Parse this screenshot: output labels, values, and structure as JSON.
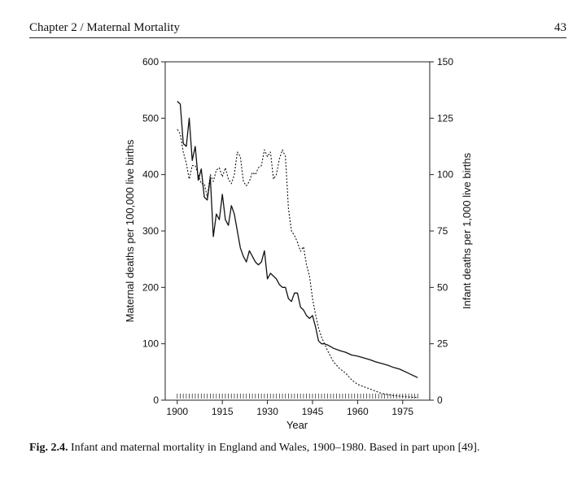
{
  "running_head": {
    "chapter": "Chapter 2 / Maternal Mortality",
    "page_number": "43"
  },
  "caption": {
    "label": "Fig. 2.4.",
    "text": "Infant and maternal mortality in England and Wales, 1900–1980. Based in part upon [49]."
  },
  "chart_data": {
    "type": "line",
    "title": "",
    "xlabel": "Year",
    "ylabel_left": "Maternal deaths per 100,000 live births",
    "ylabel_right": "Infant deaths per 1,000 live births",
    "xlim": [
      1896,
      1984
    ],
    "ylim_left": [
      0,
      600
    ],
    "ylim_right": [
      0,
      150
    ],
    "x_ticks": [
      1900,
      1915,
      1930,
      1945,
      1960,
      1975
    ],
    "y_ticks_left": [
      0,
      100,
      200,
      300,
      400,
      500,
      600
    ],
    "y_ticks_right": [
      0,
      25,
      50,
      75,
      100,
      125,
      150
    ],
    "grid": false,
    "series": [
      {
        "axis": "left",
        "style": "solid",
        "color": "#111111",
        "points": [
          [
            1900,
            530
          ],
          [
            1901,
            525
          ],
          [
            1902,
            455
          ],
          [
            1903,
            450
          ],
          [
            1904,
            500
          ],
          [
            1905,
            425
          ],
          [
            1906,
            450
          ],
          [
            1907,
            390
          ],
          [
            1908,
            410
          ],
          [
            1909,
            360
          ],
          [
            1910,
            355
          ],
          [
            1911,
            395
          ],
          [
            1912,
            290
          ],
          [
            1913,
            330
          ],
          [
            1914,
            320
          ],
          [
            1915,
            365
          ],
          [
            1916,
            320
          ],
          [
            1917,
            310
          ],
          [
            1918,
            345
          ],
          [
            1919,
            330
          ],
          [
            1920,
            300
          ],
          [
            1921,
            270
          ],
          [
            1922,
            255
          ],
          [
            1923,
            245
          ],
          [
            1924,
            265
          ],
          [
            1925,
            255
          ],
          [
            1926,
            245
          ],
          [
            1927,
            240
          ],
          [
            1928,
            245
          ],
          [
            1929,
            265
          ],
          [
            1930,
            215
          ],
          [
            1931,
            225
          ],
          [
            1932,
            220
          ],
          [
            1933,
            215
          ],
          [
            1934,
            205
          ],
          [
            1935,
            200
          ],
          [
            1936,
            200
          ],
          [
            1937,
            180
          ],
          [
            1938,
            175
          ],
          [
            1939,
            190
          ],
          [
            1940,
            190
          ],
          [
            1941,
            165
          ],
          [
            1942,
            160
          ],
          [
            1943,
            150
          ],
          [
            1944,
            145
          ],
          [
            1945,
            150
          ],
          [
            1946,
            130
          ],
          [
            1947,
            105
          ],
          [
            1948,
            100
          ],
          [
            1949,
            100
          ],
          [
            1950,
            98
          ],
          [
            1952,
            92
          ],
          [
            1954,
            88
          ],
          [
            1956,
            85
          ],
          [
            1958,
            80
          ],
          [
            1960,
            78
          ],
          [
            1962,
            75
          ],
          [
            1964,
            72
          ],
          [
            1966,
            68
          ],
          [
            1968,
            65
          ],
          [
            1970,
            62
          ],
          [
            1972,
            58
          ],
          [
            1974,
            55
          ],
          [
            1976,
            50
          ],
          [
            1978,
            45
          ],
          [
            1980,
            40
          ]
        ]
      },
      {
        "axis": "right",
        "style": "dotted",
        "color": "#111111",
        "points": [
          [
            1900,
            120
          ],
          [
            1901,
            118
          ],
          [
            1902,
            110
          ],
          [
            1903,
            105
          ],
          [
            1904,
            98
          ],
          [
            1905,
            104
          ],
          [
            1906,
            104
          ],
          [
            1907,
            100
          ],
          [
            1908,
            96
          ],
          [
            1909,
            96
          ],
          [
            1910,
            90
          ],
          [
            1911,
            100
          ],
          [
            1912,
            97
          ],
          [
            1913,
            102
          ],
          [
            1914,
            103
          ],
          [
            1915,
            99
          ],
          [
            1916,
            103
          ],
          [
            1917,
            98
          ],
          [
            1918,
            96
          ],
          [
            1919,
            100
          ],
          [
            1920,
            110
          ],
          [
            1921,
            108
          ],
          [
            1922,
            97
          ],
          [
            1923,
            95
          ],
          [
            1924,
            97
          ],
          [
            1925,
            101
          ],
          [
            1926,
            100
          ],
          [
            1927,
            103
          ],
          [
            1928,
            104
          ],
          [
            1929,
            111
          ],
          [
            1930,
            108
          ],
          [
            1931,
            110
          ],
          [
            1932,
            98
          ],
          [
            1933,
            100
          ],
          [
            1934,
            107
          ],
          [
            1935,
            111
          ],
          [
            1936,
            108
          ],
          [
            1937,
            85
          ],
          [
            1938,
            75
          ],
          [
            1939,
            73
          ],
          [
            1940,
            70
          ],
          [
            1941,
            66
          ],
          [
            1942,
            68
          ],
          [
            1943,
            60
          ],
          [
            1944,
            55
          ],
          [
            1945,
            45
          ],
          [
            1946,
            38
          ],
          [
            1947,
            32
          ],
          [
            1948,
            28
          ],
          [
            1950,
            22
          ],
          [
            1952,
            17
          ],
          [
            1954,
            14
          ],
          [
            1956,
            12
          ],
          [
            1958,
            9
          ],
          [
            1960,
            7
          ],
          [
            1962,
            6
          ],
          [
            1964,
            5
          ],
          [
            1966,
            4
          ],
          [
            1968,
            3
          ],
          [
            1970,
            2.5
          ],
          [
            1972,
            2
          ],
          [
            1974,
            1.8
          ],
          [
            1976,
            1.5
          ],
          [
            1978,
            1.3
          ],
          [
            1980,
            1.2
          ]
        ]
      }
    ]
  }
}
